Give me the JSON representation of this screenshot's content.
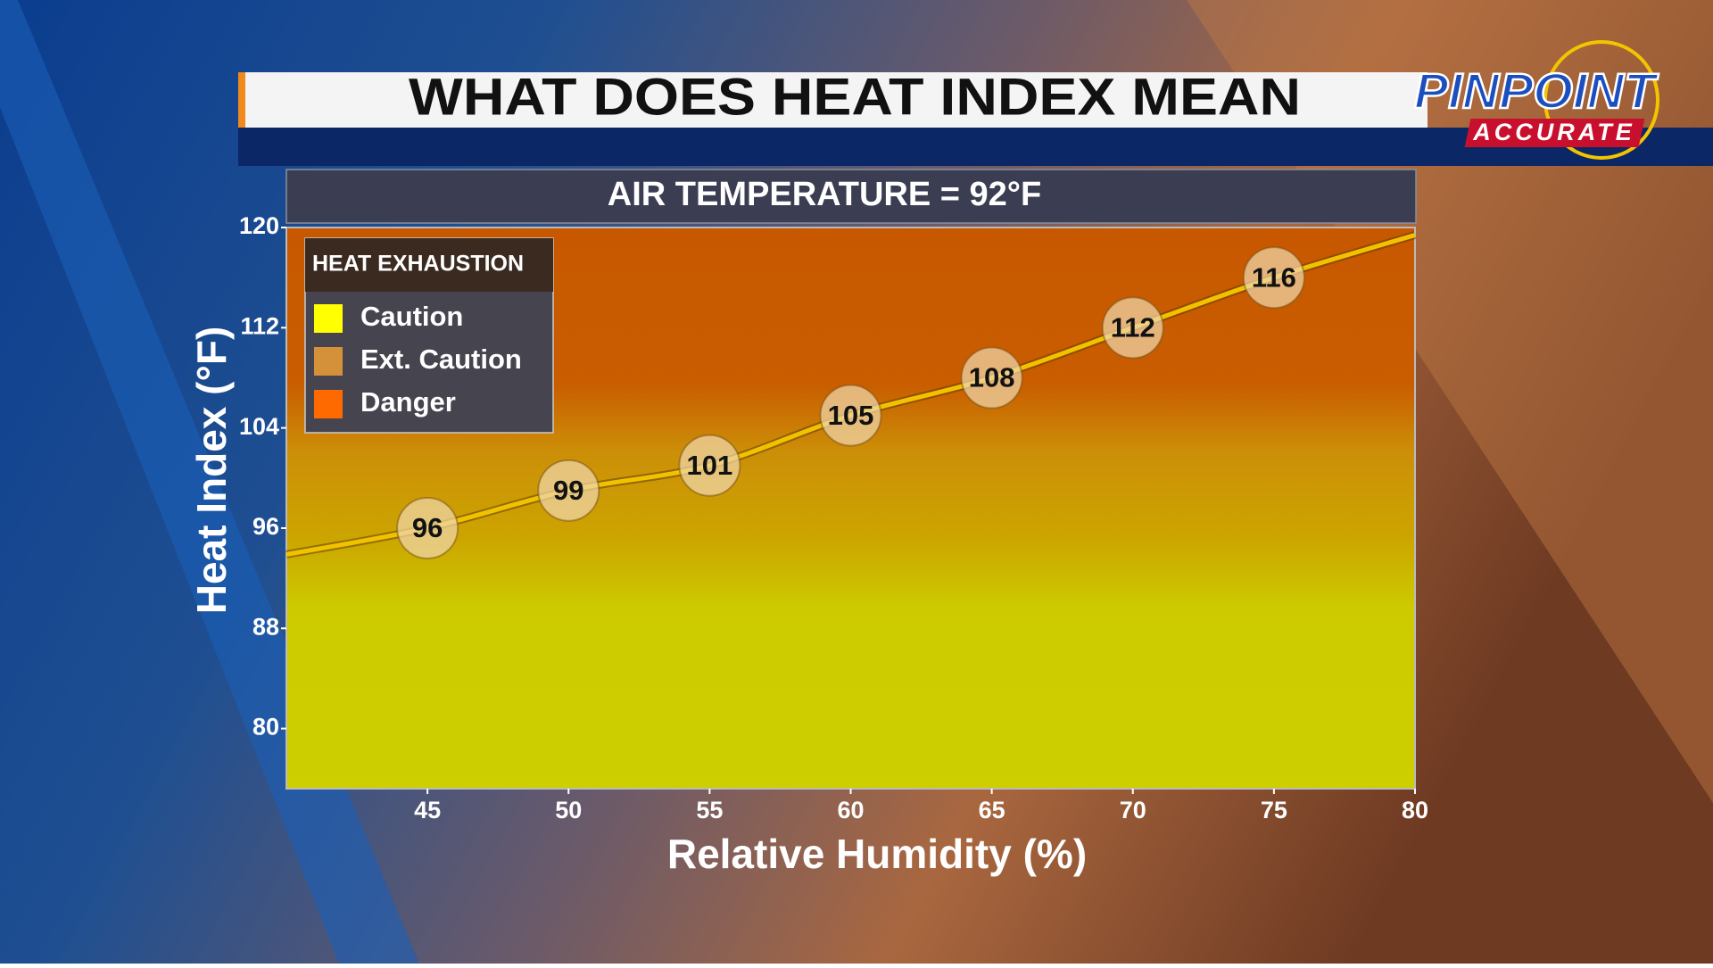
{
  "header": {
    "title": "WHAT DOES HEAT INDEX MEAN"
  },
  "logo": {
    "line1": "PINPOINT",
    "line2": "ACCURATE"
  },
  "chart_data": {
    "type": "line",
    "title": "AIR TEMPERATURE = 92°F",
    "x_label": "Relative Humidity (%)",
    "y_label": "Heat Index (°F)",
    "x": [
      40,
      45,
      50,
      55,
      60,
      65,
      70,
      75,
      80
    ],
    "series": [
      {
        "color": "#f2c200",
        "values": [
          93.9,
          96,
          99,
          101,
          105,
          108,
          112,
          116,
          119.4
        ],
        "value_labels": [
          null,
          "96",
          "99",
          "101",
          "105",
          "108",
          "112",
          "116",
          null
        ]
      }
    ],
    "xlim": [
      40,
      80
    ],
    "xticks": [
      45,
      50,
      55,
      60,
      65,
      70,
      75,
      80
    ],
    "ylim": [
      75.2,
      120
    ],
    "yticks": [
      80,
      88,
      96,
      104,
      112,
      120
    ],
    "legend": {
      "title": "HEAT EXHAUSTION",
      "items": [
        {
          "name": "Caution",
          "color": "#ffff00"
        },
        {
          "name": "Ext. Caution",
          "color": "#d4913a"
        },
        {
          "name": "Danger",
          "color": "#ff6a00"
        }
      ]
    }
  }
}
